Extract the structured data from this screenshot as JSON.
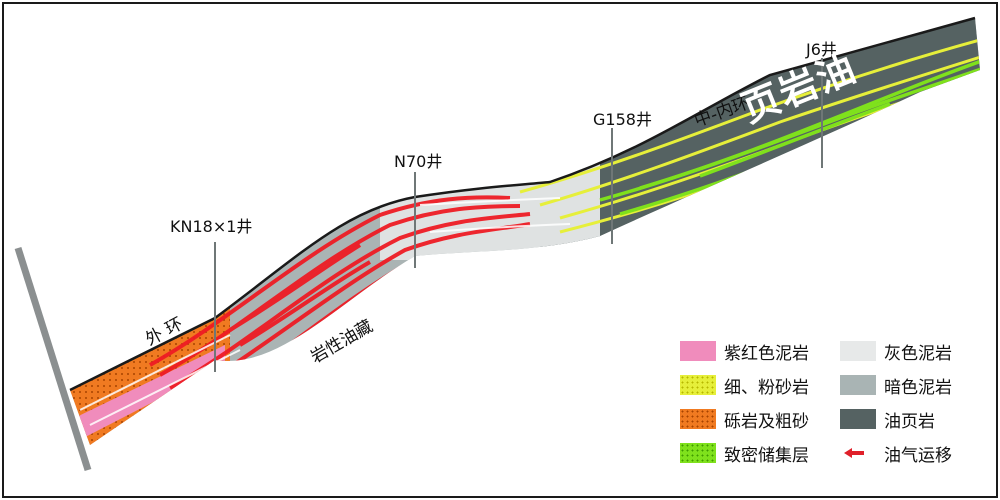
{
  "wells": [
    "KN18×1井",
    "N70井",
    "G158井",
    "J6井"
  ],
  "zones": {
    "outer_ring": "外 环",
    "middle_inner_ring": "中-内环",
    "lithologic_reservoir": "岩性油藏",
    "shale_oil": "页岩油"
  },
  "legend": [
    {
      "label": "紫红色泥岩",
      "color": "#f08cbc"
    },
    {
      "label": "细、粉砂岩",
      "color": "#e6ef3a"
    },
    {
      "label": "砾岩及粗砂",
      "color": "#f07a21"
    },
    {
      "label": "致密储集层",
      "color": "#7fe11c"
    },
    {
      "label": "灰色泥岩",
      "color": "#e7e9e9"
    },
    {
      "label": "暗色泥岩",
      "color": "#a9b4b4"
    },
    {
      "label": "油页岩",
      "color": "#556262"
    },
    {
      "label": "油气运移",
      "color": "#e0202a"
    }
  ]
}
